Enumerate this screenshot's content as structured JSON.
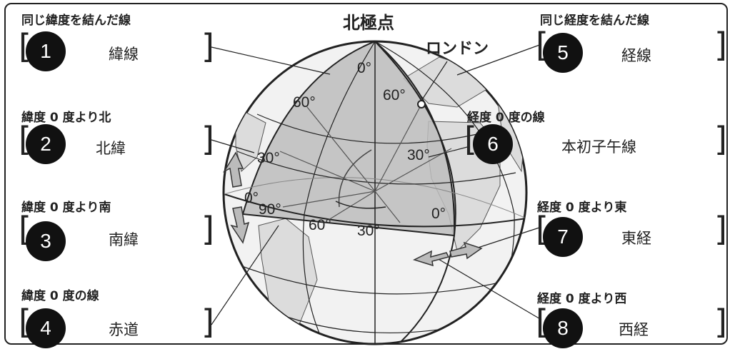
{
  "title": "北極点",
  "london": "ロンドン",
  "degree_labels": {
    "lat0_top": "0°",
    "lat60_left": "60°",
    "lat60_right": "60°",
    "lat30_left": "30°",
    "lat30_right": "30°",
    "eq0_left": "0°",
    "lon90": "90°",
    "lon60": "60°",
    "lon30": "30°",
    "lon0": "0°"
  },
  "items": [
    {
      "caption": "同じ緯度を結んだ線",
      "number": "1",
      "answer": "緯線"
    },
    {
      "caption": "緯度 0 度より北",
      "number": "2",
      "answer": "北緯"
    },
    {
      "caption": "緯度 0 度より南",
      "number": "3",
      "answer": "南緯"
    },
    {
      "caption": "緯度 0 度の線",
      "number": "4",
      "answer": "赤道"
    },
    {
      "caption": "同じ経度を結んだ線",
      "number": "5",
      "answer": "経線"
    },
    {
      "caption": "経度 0 度の線",
      "number": "6",
      "answer": "本初子午線"
    },
    {
      "caption": "経度 0 度より東",
      "number": "7",
      "answer": "東経"
    },
    {
      "caption": "経度 0 度より西",
      "number": "8",
      "answer": "西経"
    }
  ]
}
